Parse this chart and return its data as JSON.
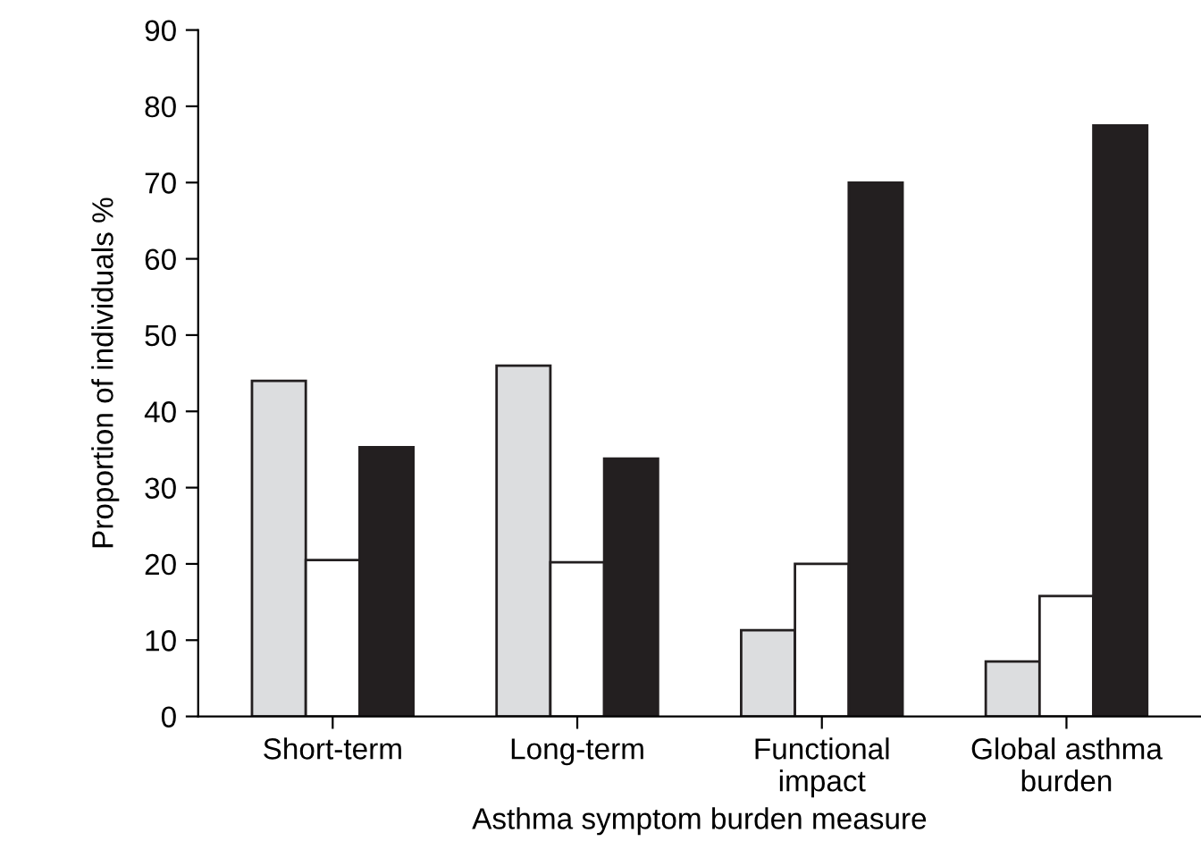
{
  "chart_data": {
    "type": "bar",
    "xlabel": "Asthma symptom burden measure",
    "ylabel": "Proportion of individuals %",
    "categories": [
      "Short-term",
      "Long-term",
      "Functional\nimpact",
      "Global asthma\nburden"
    ],
    "series": [
      {
        "color": "#dcdddf",
        "values": [
          44,
          46,
          11.3,
          7.2
        ]
      },
      {
        "color": "#ffffff",
        "values": [
          20.5,
          20.2,
          20,
          15.8
        ]
      },
      {
        "color": "#231f20",
        "values": [
          35.3,
          33.8,
          70,
          77.5
        ]
      }
    ],
    "ylim": [
      0,
      90
    ],
    "yticks": [
      0,
      10,
      20,
      30,
      40,
      50,
      60,
      70,
      80,
      90
    ],
    "grid": false,
    "legend": false
  }
}
